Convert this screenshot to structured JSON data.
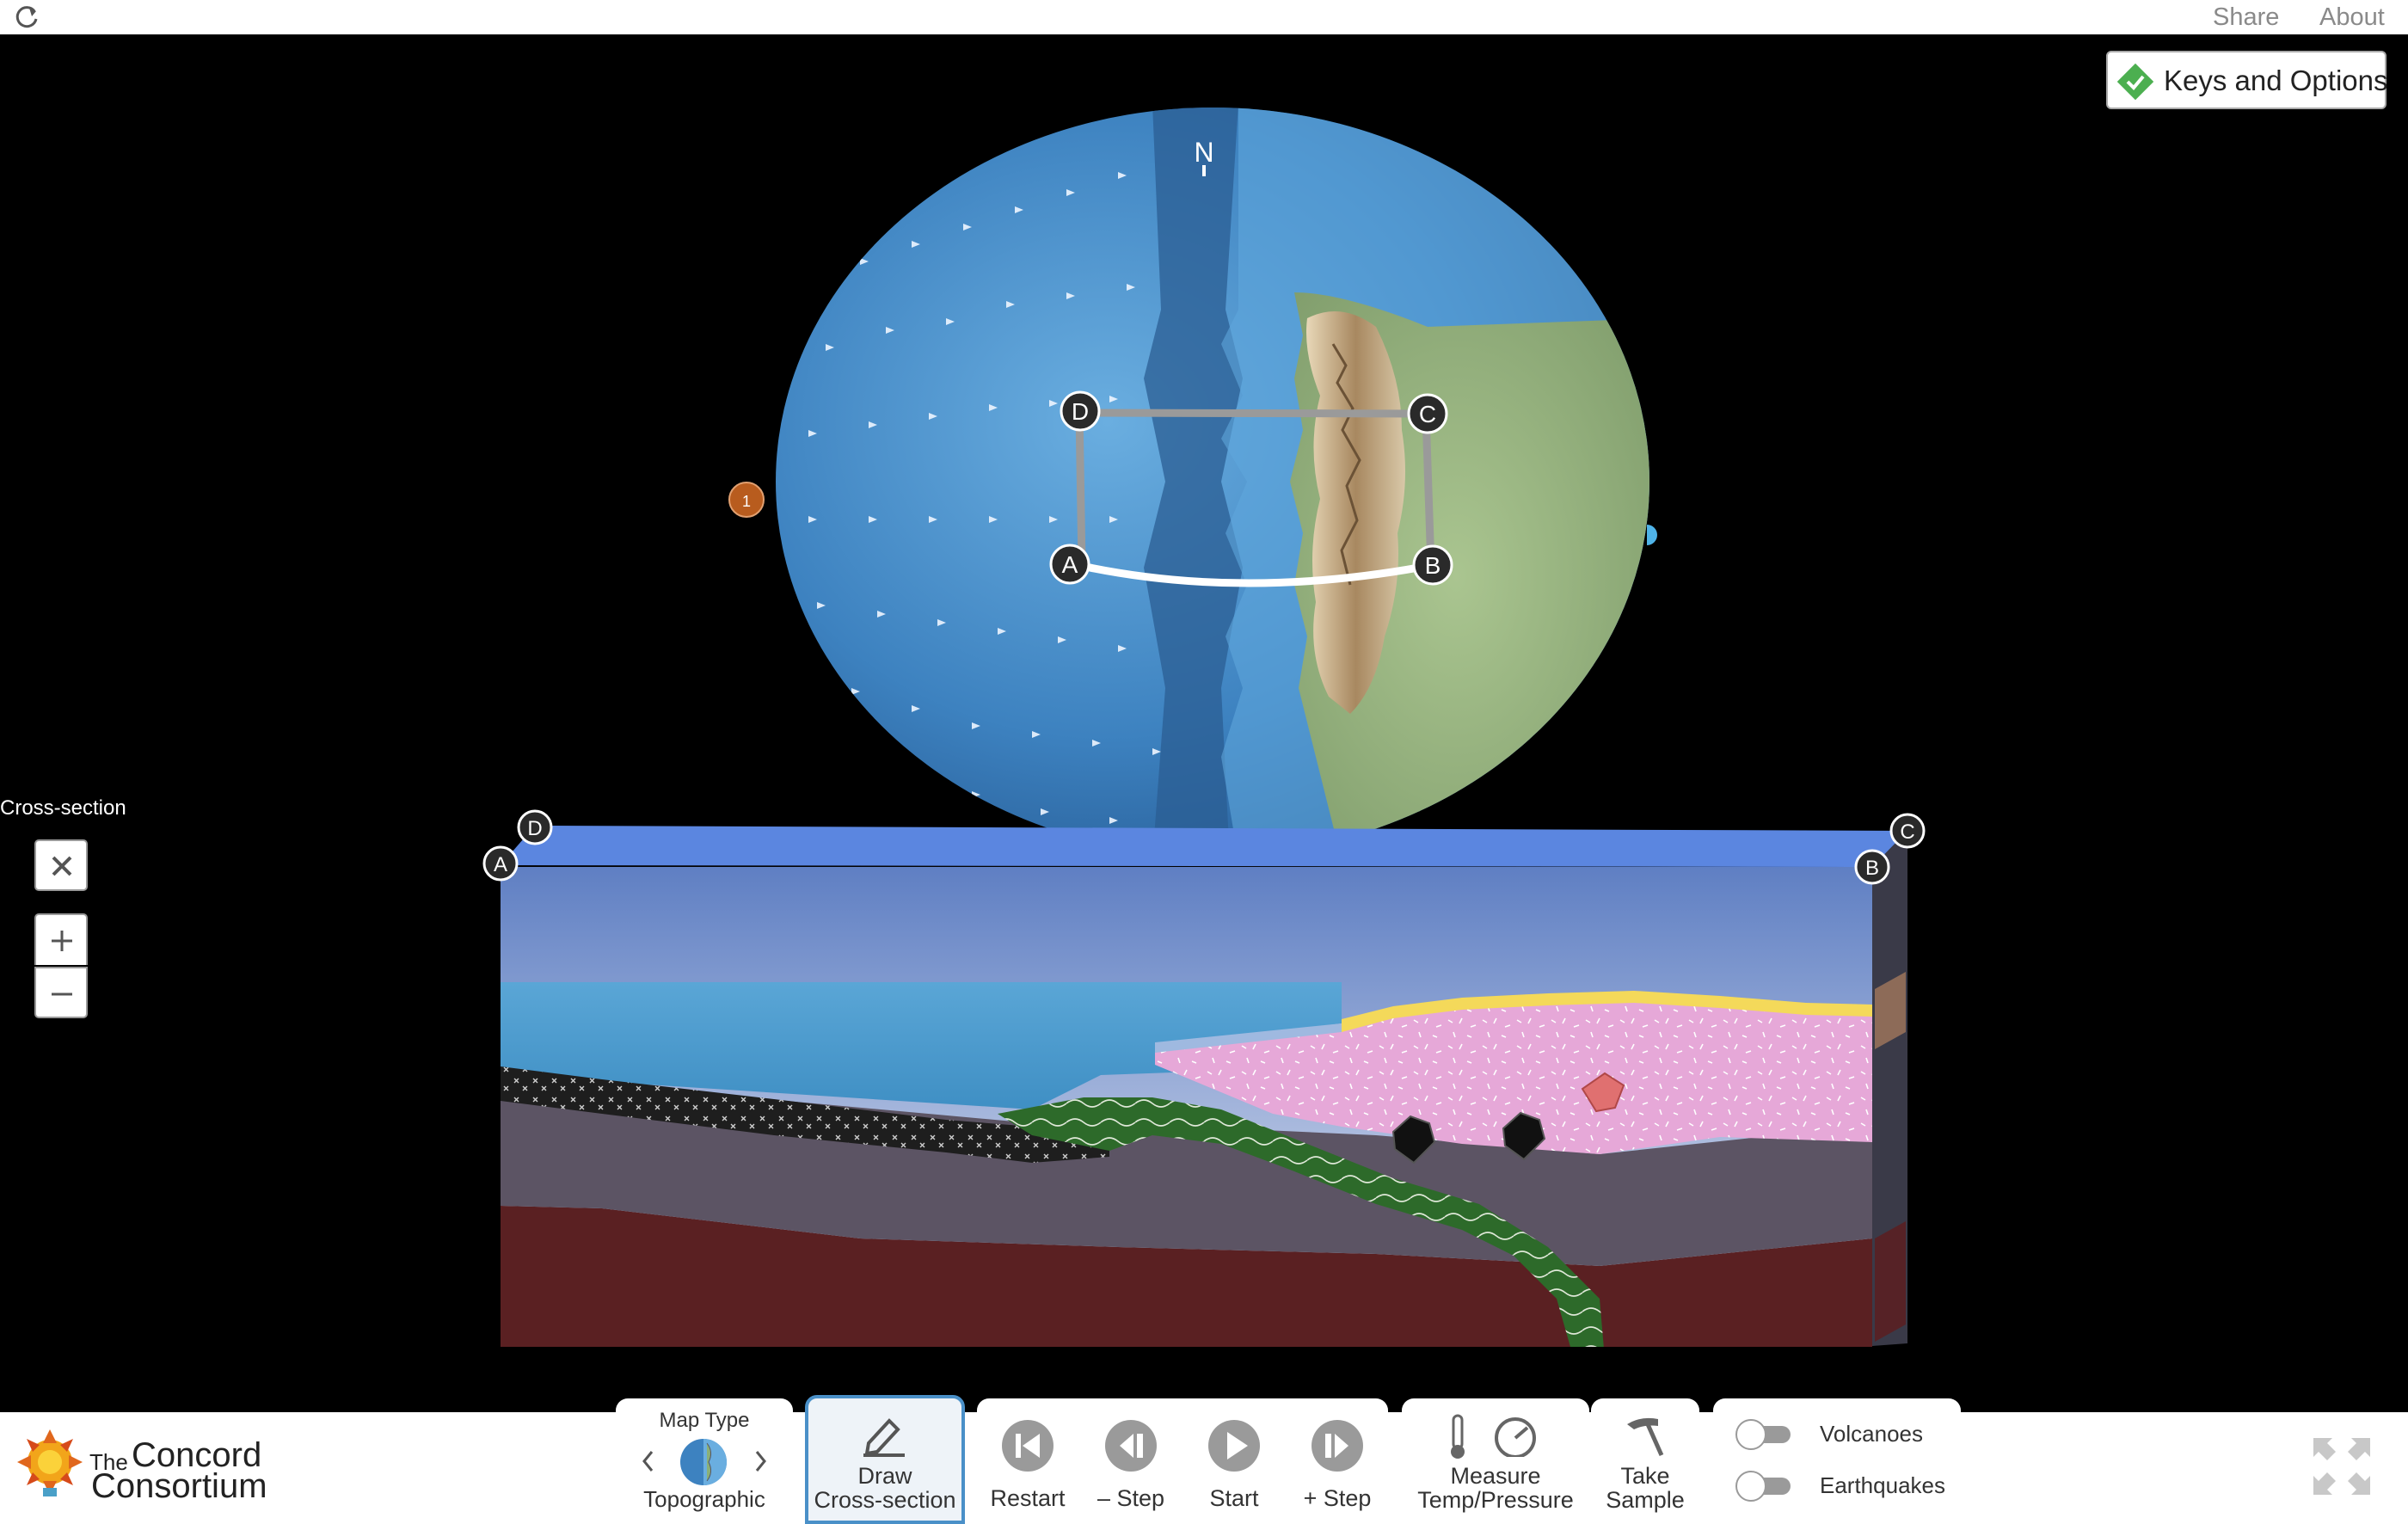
{
  "topbar": {
    "share": "Share",
    "about": "About",
    "reload_icon": "reload-icon"
  },
  "keys_button": {
    "label": "Keys and Options",
    "icon": "check-diamond-icon",
    "accent": "#4caf50"
  },
  "globe": {
    "north_label": "N",
    "points": [
      "A",
      "B",
      "C",
      "D"
    ],
    "plate_marker": "1",
    "plate_marker_color": "#b85c1e"
  },
  "cross_section": {
    "title": "Cross-section",
    "corners": [
      "A",
      "B",
      "C",
      "D"
    ],
    "close_icon": "close-icon",
    "zoom_in_icon": "plus-icon",
    "zoom_out_icon": "minus-icon",
    "colors": {
      "sky": "#5b86c9",
      "ocean": "#4ba0d0",
      "ocean_crust": "#2a2a2a",
      "continent": "#e6a8d8",
      "mantle": "#5c5464",
      "deep_mantle": "#5a2022",
      "subducted": "#2f6a2a"
    }
  },
  "toolbar": {
    "map_type": {
      "title": "Map Type",
      "value": "Topographic"
    },
    "draw": {
      "line1": "Draw",
      "line2": "Cross-section"
    },
    "restart": "Restart",
    "step_back": "– Step",
    "start": "Start",
    "step_forward": "+ Step",
    "measure": {
      "line1": "Measure",
      "line2": "Temp/Pressure"
    },
    "sample": {
      "line1": "Take",
      "line2": "Sample"
    },
    "volcanoes": "Volcanoes",
    "earthquakes": "Earthquakes"
  },
  "logo": {
    "the": "The",
    "line1": "Concord",
    "line2": "Consortium"
  }
}
